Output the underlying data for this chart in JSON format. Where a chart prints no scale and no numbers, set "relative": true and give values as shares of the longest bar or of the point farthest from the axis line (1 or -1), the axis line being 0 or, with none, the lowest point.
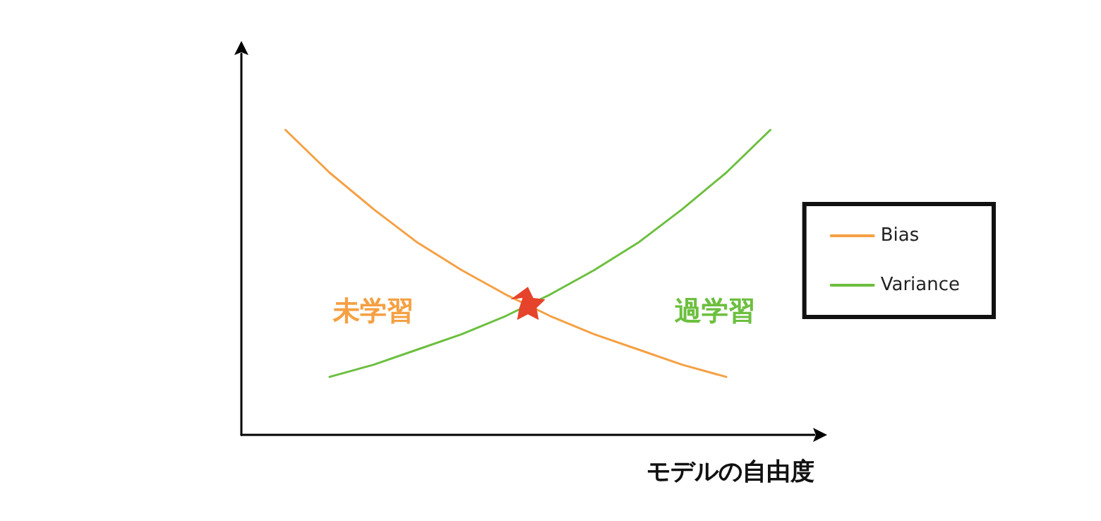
{
  "chart_data": {
    "type": "line",
    "relative": true,
    "xlabel": "モデルの自由度",
    "categories": [
      null,
      null,
      null,
      null,
      null,
      null,
      null,
      null,
      null,
      null,
      null,
      null,
      null,
      null
    ],
    "series": [
      {
        "name": "Bias",
        "color": "#f5a043",
        "values": [
          null,
          1.0,
          0.86,
          0.74,
          0.63,
          0.54,
          0.46,
          0.39,
          0.33,
          0.28,
          0.23,
          0.19,
          null,
          null
        ]
      },
      {
        "name": "Variance",
        "color": "#6cbf3f",
        "values": [
          null,
          null,
          0.19,
          0.23,
          0.28,
          0.33,
          0.39,
          0.46,
          0.54,
          0.63,
          0.74,
          0.86,
          1.0,
          null
        ]
      }
    ],
    "annotations": [
      "未学習",
      "過学習"
    ],
    "legend": "right",
    "marker": "none",
    "line_style": "solid",
    "grid": false
  }
}
